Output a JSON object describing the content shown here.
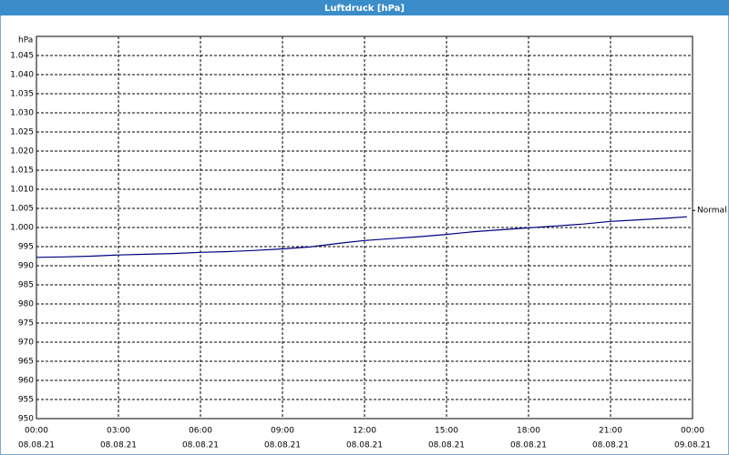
{
  "chart_data": {
    "type": "line",
    "title": "Luftdruck [hPa]",
    "y_unit": "hPa",
    "x": [
      0,
      1,
      2,
      3,
      4,
      5,
      6,
      7,
      8,
      9,
      10,
      11,
      12,
      13,
      14,
      15,
      16,
      17,
      18,
      19,
      20,
      21,
      22,
      23,
      23.8
    ],
    "series": [
      {
        "name": "Normal",
        "color": "#000080",
        "values": [
          992.2,
          992.3,
          992.5,
          992.8,
          993.0,
          993.2,
          993.5,
          993.7,
          994.0,
          994.4,
          994.9,
          995.8,
          996.6,
          997.1,
          997.6,
          998.2,
          998.9,
          999.4,
          999.9,
          1000.4,
          1000.9,
          1001.6,
          1002.0,
          1002.4,
          1002.8
        ]
      }
    ],
    "xlim": [
      0,
      24
    ],
    "xticks": [
      {
        "value": 0,
        "label": "00:00"
      },
      {
        "value": 3,
        "label": "03:00"
      },
      {
        "value": 6,
        "label": "06:00"
      },
      {
        "value": 9,
        "label": "09:00"
      },
      {
        "value": 12,
        "label": "12:00"
      },
      {
        "value": 15,
        "label": "15:00"
      },
      {
        "value": 18,
        "label": "18:00"
      },
      {
        "value": 21,
        "label": "21:00"
      },
      {
        "value": 24,
        "label": "00:00"
      }
    ],
    "xtick_dates": [
      "08.08.21",
      "08.08.21",
      "08.08.21",
      "08.08.21",
      "08.08.21",
      "08.08.21",
      "08.08.21",
      "08.08.21",
      "09.08.21"
    ],
    "ylim": [
      950,
      1050
    ],
    "yticks": [
      950,
      955,
      960,
      965,
      970,
      975,
      980,
      985,
      990,
      995,
      {
        "value": 1000,
        "label": "1.000"
      },
      {
        "value": 1005,
        "label": "1.005"
      },
      {
        "value": 1010,
        "label": "1.010"
      },
      {
        "value": 1015,
        "label": "1.015"
      },
      {
        "value": 1020,
        "label": "1.020"
      },
      {
        "value": 1025,
        "label": "1.025"
      },
      {
        "value": 1030,
        "label": "1.030"
      },
      {
        "value": 1035,
        "label": "1.035"
      },
      {
        "value": 1040,
        "label": "1.040"
      },
      {
        "value": 1045,
        "label": "1.045"
      }
    ],
    "grid": true
  }
}
